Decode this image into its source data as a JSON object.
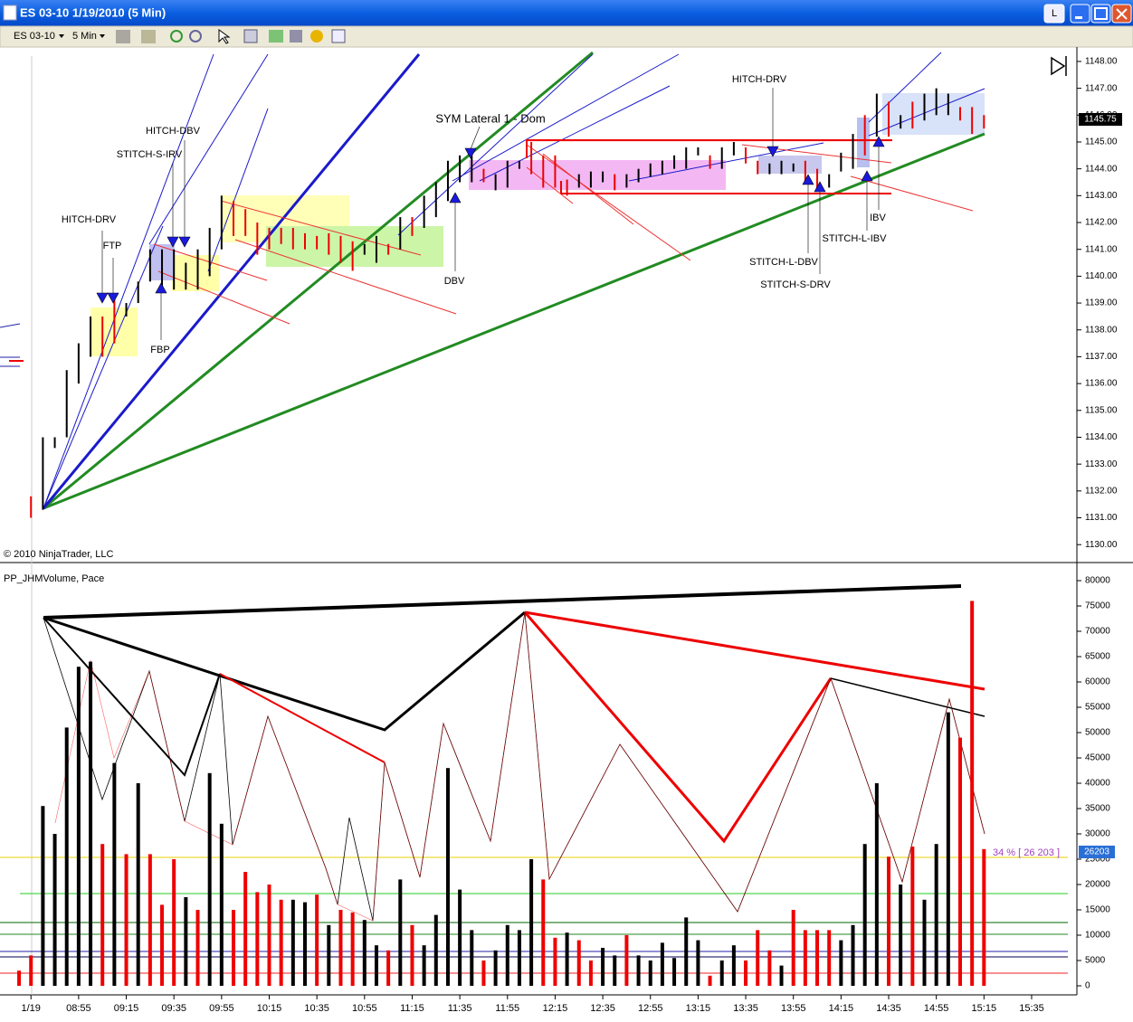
{
  "window": {
    "title": "ES 03-10  1/19/2010 (5 Min)",
    "button": "L"
  },
  "toolbar": {
    "instrument": "ES 03-10",
    "interval": "5 Min"
  },
  "copyright": "© 2010 NinjaTrader, LLC",
  "price_badge": 1145.75,
  "pace_label": "34 % [ 26 203 ]",
  "pace_badge": 26203,
  "annotations": [
    "HITCH-DRV",
    "FTP",
    "FBP",
    "STITCH-S-IRV",
    "HITCH-DBV",
    "SYM Lateral 1 - Dom",
    "DBV",
    "HITCH-DRV",
    "STITCH-L-DBV",
    "STITCH-S-DRV",
    "STITCH-L-IBV",
    "IBV"
  ],
  "chart_data": [
    {
      "type": "range-bar",
      "x": [
        515,
        520,
        525,
        530,
        535,
        540,
        545,
        550,
        555,
        560,
        565,
        570,
        575,
        580,
        585,
        590,
        595,
        600,
        605,
        610,
        615,
        620,
        625,
        630,
        635,
        640,
        645,
        650,
        655,
        660,
        665,
        670,
        675,
        680,
        685,
        690,
        695,
        700,
        705,
        710,
        715,
        720,
        725,
        730,
        735,
        740,
        745,
        750,
        755,
        760,
        765,
        770,
        775,
        780,
        785,
        790,
        795,
        800,
        805,
        810,
        815,
        820,
        825,
        830,
        835,
        840,
        845,
        850,
        855,
        860,
        865,
        870,
        875,
        880,
        885,
        890,
        895,
        900,
        905,
        910,
        915
      ],
      "high": [
        1131.8,
        1134.0,
        1134.0,
        1136.5,
        1137.5,
        1138.5,
        1138.5,
        1139.2,
        1139.0,
        1139.8,
        1141.0,
        1141.0,
        1141.0,
        1140.5,
        1141.0,
        1141.8,
        1143.0,
        1142.8,
        1142.5,
        1142.0,
        1141.8,
        1141.8,
        1141.8,
        1141.6,
        1141.5,
        1141.6,
        1141.5,
        1141.3,
        1141.2,
        1141.5,
        1141.2,
        1142.2,
        1142.2,
        1143.0,
        1143.5,
        1144.3,
        1144.5,
        1144.5,
        1144.0,
        1143.8,
        1144.3,
        1144.3,
        1145.0,
        1144.5,
        1144.5,
        1143.6,
        1143.8,
        1143.9,
        1143.9,
        1143.8,
        1143.8,
        1144.0,
        1144.2,
        1144.3,
        1144.5,
        1144.8,
        1144.8,
        1144.5,
        1144.8,
        1145.0,
        1144.8,
        1144.3,
        1144.2,
        1144.3,
        1144.2,
        1144.3,
        1144.0,
        1143.8,
        1144.6,
        1145.3,
        1146.0,
        1146.8,
        1146.5,
        1146.0,
        1146.5,
        1146.8,
        1147.0,
        1146.8,
        1146.3,
        1146.3,
        1146.0
      ],
      "low": [
        1131.0,
        1131.3,
        1133.6,
        1134.0,
        1136.0,
        1137.0,
        1137.0,
        1137.5,
        1138.5,
        1139.0,
        1139.8,
        1139.5,
        1139.5,
        1139.5,
        1139.5,
        1140.0,
        1141.0,
        1141.5,
        1141.5,
        1140.8,
        1141.0,
        1141.2,
        1141.0,
        1141.0,
        1141.0,
        1140.8,
        1140.5,
        1140.2,
        1140.8,
        1140.5,
        1140.8,
        1141.0,
        1141.5,
        1141.8,
        1142.2,
        1142.8,
        1143.5,
        1143.5,
        1143.5,
        1143.2,
        1143.3,
        1144.0,
        1143.8,
        1143.3,
        1143.3,
        1143.0,
        1143.3,
        1143.3,
        1143.5,
        1143.2,
        1143.3,
        1143.5,
        1143.7,
        1143.8,
        1144.0,
        1144.0,
        1144.5,
        1144.0,
        1144.0,
        1144.5,
        1144.2,
        1143.8,
        1143.8,
        1143.8,
        1143.9,
        1143.5,
        1143.2,
        1143.3,
        1143.9,
        1144.0,
        1144.5,
        1145.2,
        1145.2,
        1145.5,
        1145.5,
        1145.8,
        1146.0,
        1146.0,
        1145.8,
        1145.3,
        1145.5
      ],
      "colors": [
        "#e00",
        "#000",
        "#000",
        "#000",
        "#000",
        "#000",
        "#e00",
        "#e00",
        "#000",
        "#000",
        "#000",
        "#000",
        "#000",
        "#000",
        "#000",
        "#000",
        "#000",
        "#e00",
        "#e00",
        "#e00",
        "#e00",
        "#e00",
        "#e00",
        "#e00",
        "#e00",
        "#e00",
        "#e00",
        "#e00",
        "#000",
        "#000",
        "#e00",
        "#000",
        "#e00",
        "#000",
        "#000",
        "#000",
        "#000",
        "#000",
        "#e00",
        "#000",
        "#000",
        "#000",
        "#e00",
        "#e00",
        "#e00",
        "#e00",
        "#000",
        "#000",
        "#000",
        "#e00",
        "#000",
        "#000",
        "#000",
        "#000",
        "#000",
        "#000",
        "#000",
        "#e00",
        "#000",
        "#000",
        "#e00",
        "#e00",
        "#000",
        "#000",
        "#000",
        "#e00",
        "#e00",
        "#000",
        "#000",
        "#000",
        "#e00",
        "#000",
        "#e00",
        "#000",
        "#e00",
        "#000",
        "#000",
        "#000",
        "#e00",
        "#e00",
        "#e00"
      ],
      "xlim": [
        502,
        954
      ],
      "ylim": [
        1129.4,
        1148.2
      ],
      "yticks": [
        {
          "value": 1130,
          "label": "1130.00"
        },
        {
          "value": 1131,
          "label": "1131.00"
        },
        {
          "value": 1132,
          "label": "1132.00"
        },
        {
          "value": 1133,
          "label": "1133.00"
        },
        {
          "value": 1134,
          "label": "1134.00"
        },
        {
          "value": 1135,
          "label": "1135.00"
        },
        {
          "value": 1136,
          "label": "1136.00"
        },
        {
          "value": 1137,
          "label": "1137.00"
        },
        {
          "value": 1138,
          "label": "1138.00"
        },
        {
          "value": 1139,
          "label": "1139.00"
        },
        {
          "value": 1140,
          "label": "1140.00"
        },
        {
          "value": 1141,
          "label": "1141.00"
        },
        {
          "value": 1142,
          "label": "1142.00"
        },
        {
          "value": 1143,
          "label": "1143.00"
        },
        {
          "value": 1144,
          "label": "1144.00"
        },
        {
          "value": 1145,
          "label": "1145.00"
        },
        {
          "value": 1146,
          "label": "1146.00"
        },
        {
          "value": 1147,
          "label": "1147.00"
        },
        {
          "value": 1148,
          "label": "1148.00"
        }
      ]
    },
    {
      "type": "bar",
      "title": "PP_JHMVolume, Pace",
      "x": [
        510,
        515,
        520,
        525,
        530,
        535,
        540,
        545,
        550,
        555,
        560,
        565,
        570,
        575,
        580,
        585,
        590,
        595,
        600,
        605,
        610,
        615,
        620,
        625,
        630,
        635,
        640,
        645,
        650,
        655,
        660,
        665,
        670,
        675,
        680,
        685,
        690,
        695,
        700,
        705,
        710,
        715,
        720,
        725,
        730,
        735,
        740,
        745,
        750,
        755,
        760,
        765,
        770,
        775,
        780,
        785,
        790,
        795,
        800,
        805,
        810,
        815,
        820,
        825,
        830,
        835,
        840,
        845,
        850,
        855,
        860,
        865,
        870,
        875,
        880,
        885,
        890,
        895,
        900,
        905,
        910,
        915
      ],
      "values": [
        3000,
        6000,
        35500,
        30000,
        51000,
        63000,
        64000,
        28000,
        44000,
        26000,
        40000,
        26000,
        16000,
        25000,
        17500,
        15000,
        42000,
        32000,
        15000,
        22500,
        18500,
        20000,
        17000,
        17000,
        16500,
        18000,
        12000,
        15000,
        14500,
        13000,
        8000,
        7000,
        21000,
        12000,
        8000,
        14000,
        43000,
        19000,
        11000,
        5000,
        7000,
        12000,
        11000,
        25000,
        21000,
        9500,
        10500,
        9000,
        5000,
        7500,
        6000,
        10000,
        6000,
        5000,
        8500,
        5500,
        13500,
        9000,
        2000,
        5000,
        8000,
        5000,
        11000,
        7000,
        4000,
        15000,
        11000,
        11000,
        11000,
        9000,
        12000,
        28000,
        40000,
        25500,
        20000,
        27500,
        17000,
        28000,
        54000,
        49000,
        76000,
        27000
      ],
      "colors": [
        "#e00",
        "#e00",
        "#000",
        "#000",
        "#000",
        "#000",
        "#000",
        "#e00",
        "#000",
        "#e00",
        "#000",
        "#e00",
        "#e00",
        "#e00",
        "#000",
        "#e00",
        "#000",
        "#000",
        "#e00",
        "#e00",
        "#e00",
        "#e00",
        "#e00",
        "#000",
        "#000",
        "#e00",
        "#000",
        "#e00",
        "#e00",
        "#000",
        "#000",
        "#e00",
        "#000",
        "#e00",
        "#000",
        "#000",
        "#000",
        "#000",
        "#000",
        "#e00",
        "#000",
        "#000",
        "#000",
        "#000",
        "#e00",
        "#e00",
        "#000",
        "#e00",
        "#e00",
        "#000",
        "#000",
        "#e00",
        "#000",
        "#000",
        "#000",
        "#000",
        "#000",
        "#000",
        "#e00",
        "#000",
        "#000",
        "#e00",
        "#e00",
        "#e00",
        "#000",
        "#e00",
        "#e00",
        "#e00",
        "#e00",
        "#000",
        "#000",
        "#000",
        "#000",
        "#e00",
        "#000",
        "#e00",
        "#000",
        "#000",
        "#000",
        "#e00",
        "#e00",
        "#e00"
      ],
      "xlim": [
        502,
        954
      ],
      "ylim": [
        -1786,
        83036
      ],
      "yticks": [
        0,
        5000,
        10000,
        15000,
        20000,
        25000,
        30000,
        35000,
        40000,
        45000,
        50000,
        55000,
        60000,
        65000,
        70000,
        75000,
        80000
      ],
      "xticks": [
        {
          "value": 515,
          "label": "1/19"
        },
        {
          "value": 535,
          "label": "08:55"
        },
        {
          "value": 555,
          "label": "09:15"
        },
        {
          "value": 575,
          "label": "09:35"
        },
        {
          "value": 595,
          "label": "09:55"
        },
        {
          "value": 615,
          "label": "10:15"
        },
        {
          "value": 635,
          "label": "10:35"
        },
        {
          "value": 655,
          "label": "10:55"
        },
        {
          "value": 675,
          "label": "11:15"
        },
        {
          "value": 695,
          "label": "11:35"
        },
        {
          "value": 715,
          "label": "11:55"
        },
        {
          "value": 735,
          "label": "12:15"
        },
        {
          "value": 755,
          "label": "12:35"
        },
        {
          "value": 775,
          "label": "12:55"
        },
        {
          "value": 795,
          "label": "13:15"
        },
        {
          "value": 815,
          "label": "13:35"
        },
        {
          "value": 835,
          "label": "13:55"
        },
        {
          "value": 855,
          "label": "14:15"
        },
        {
          "value": 875,
          "label": "14:35"
        },
        {
          "value": 895,
          "label": "14:55"
        },
        {
          "value": 915,
          "label": "15:15"
        },
        {
          "value": 935,
          "label": "15:35"
        }
      ]
    }
  ]
}
